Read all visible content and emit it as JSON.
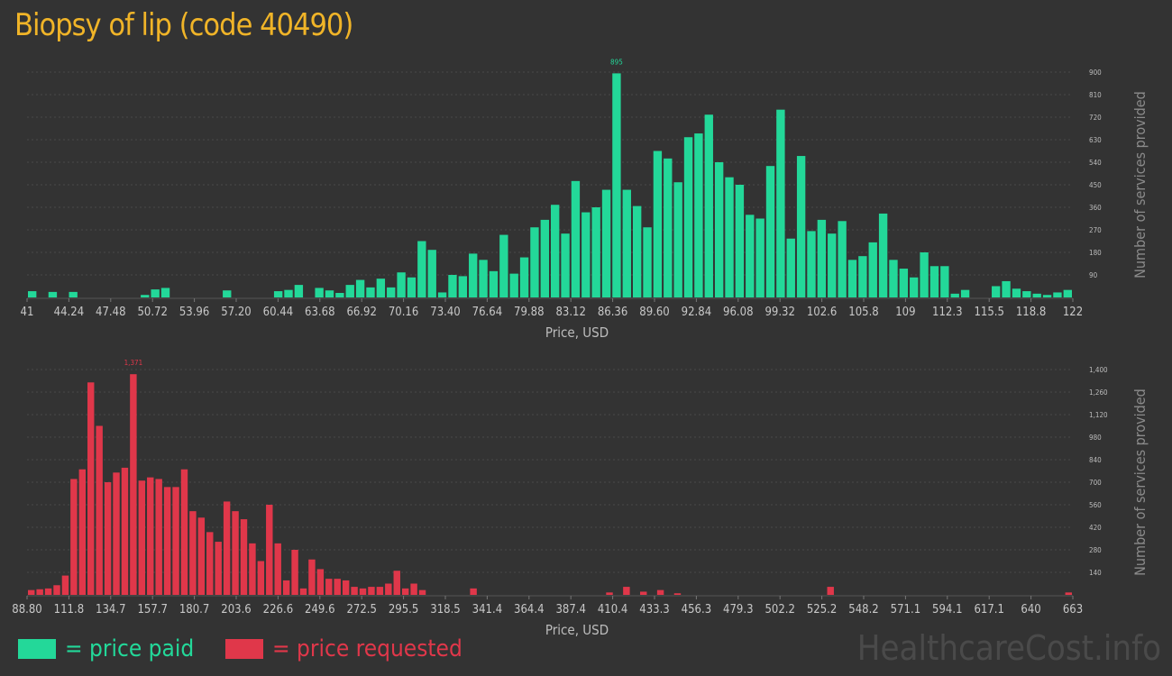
{
  "title": "Biopsy of lip (code 40490)",
  "chart_data": [
    {
      "type": "bar",
      "name": "price paid",
      "color": "#23d899",
      "xlabel": "Price, USD",
      "ylabel": "Number of services provided",
      "ylim": [
        0,
        900
      ],
      "yticks": [
        "90",
        "180",
        "270",
        "360",
        "450",
        "540",
        "630",
        "720",
        "810",
        "900"
      ],
      "xticks": [
        "41",
        "44.24",
        "47.48",
        "50.72",
        "53.96",
        "57.20",
        "60.44",
        "63.68",
        "66.92",
        "70.16",
        "73.40",
        "76.64",
        "79.88",
        "83.12",
        "86.36",
        "89.60",
        "92.84",
        "96.08",
        "99.32",
        "102.6",
        "105.8",
        "109",
        "112.3",
        "115.5",
        "118.8",
        "122"
      ],
      "peak_label": "895",
      "values": [
        25,
        0,
        22,
        0,
        22,
        0,
        0,
        0,
        0,
        0,
        0,
        10,
        32,
        38,
        0,
        0,
        0,
        0,
        0,
        28,
        0,
        0,
        0,
        0,
        25,
        30,
        50,
        0,
        38,
        28,
        18,
        50,
        70,
        40,
        75,
        40,
        100,
        80,
        225,
        190,
        20,
        90,
        85,
        175,
        150,
        105,
        250,
        95,
        160,
        280,
        310,
        370,
        255,
        465,
        340,
        360,
        430,
        895,
        430,
        365,
        280,
        585,
        555,
        460,
        640,
        655,
        730,
        540,
        480,
        450,
        330,
        315,
        525,
        750,
        235,
        565,
        265,
        310,
        255,
        305,
        150,
        165,
        220,
        335,
        150,
        115,
        80,
        180,
        125,
        125,
        15,
        30,
        0,
        0,
        45,
        65,
        35,
        25,
        15,
        10,
        20,
        30
      ]
    },
    {
      "type": "bar",
      "name": "price requested",
      "color": "#e0374a",
      "xlabel": "Price, USD",
      "ylabel": "Number of services provided",
      "ylim": [
        0,
        1400
      ],
      "yticks": [
        "140",
        "280",
        "420",
        "560",
        "700",
        "840",
        "980",
        "1,120",
        "1,260",
        "1,400"
      ],
      "xticks": [
        "88.80",
        "111.8",
        "134.7",
        "157.7",
        "180.7",
        "203.6",
        "226.6",
        "249.6",
        "272.5",
        "295.5",
        "318.5",
        "341.4",
        "364.4",
        "387.4",
        "410.4",
        "433.3",
        "456.3",
        "479.3",
        "502.2",
        "525.2",
        "548.2",
        "571.1",
        "594.1",
        "617.1",
        "640",
        "663"
      ],
      "peak_label": "1,371",
      "values": [
        30,
        35,
        40,
        60,
        120,
        720,
        780,
        1320,
        1050,
        700,
        760,
        790,
        1371,
        710,
        730,
        720,
        670,
        670,
        780,
        520,
        480,
        390,
        330,
        580,
        520,
        470,
        320,
        210,
        560,
        320,
        90,
        280,
        40,
        220,
        160,
        100,
        100,
        90,
        50,
        40,
        50,
        50,
        70,
        150,
        40,
        70,
        30,
        0,
        0,
        0,
        0,
        0,
        40,
        0,
        0,
        0,
        0,
        0,
        0,
        0,
        0,
        0,
        0,
        0,
        0,
        0,
        0,
        0,
        15,
        0,
        50,
        0,
        20,
        0,
        30,
        0,
        10,
        0,
        0,
        0,
        0,
        0,
        0,
        0,
        0,
        0,
        0,
        0,
        0,
        0,
        0,
        0,
        0,
        0,
        50,
        0,
        0,
        0,
        0,
        0,
        0,
        0,
        0,
        0,
        0,
        0,
        0,
        0,
        0,
        0,
        0,
        0,
        0,
        0,
        0,
        0,
        0,
        0,
        0,
        0,
        0,
        0,
        15
      ]
    }
  ],
  "legend": {
    "paid": "= price paid",
    "requested": "= price requested"
  },
  "watermark": "HealthcareCost.info"
}
